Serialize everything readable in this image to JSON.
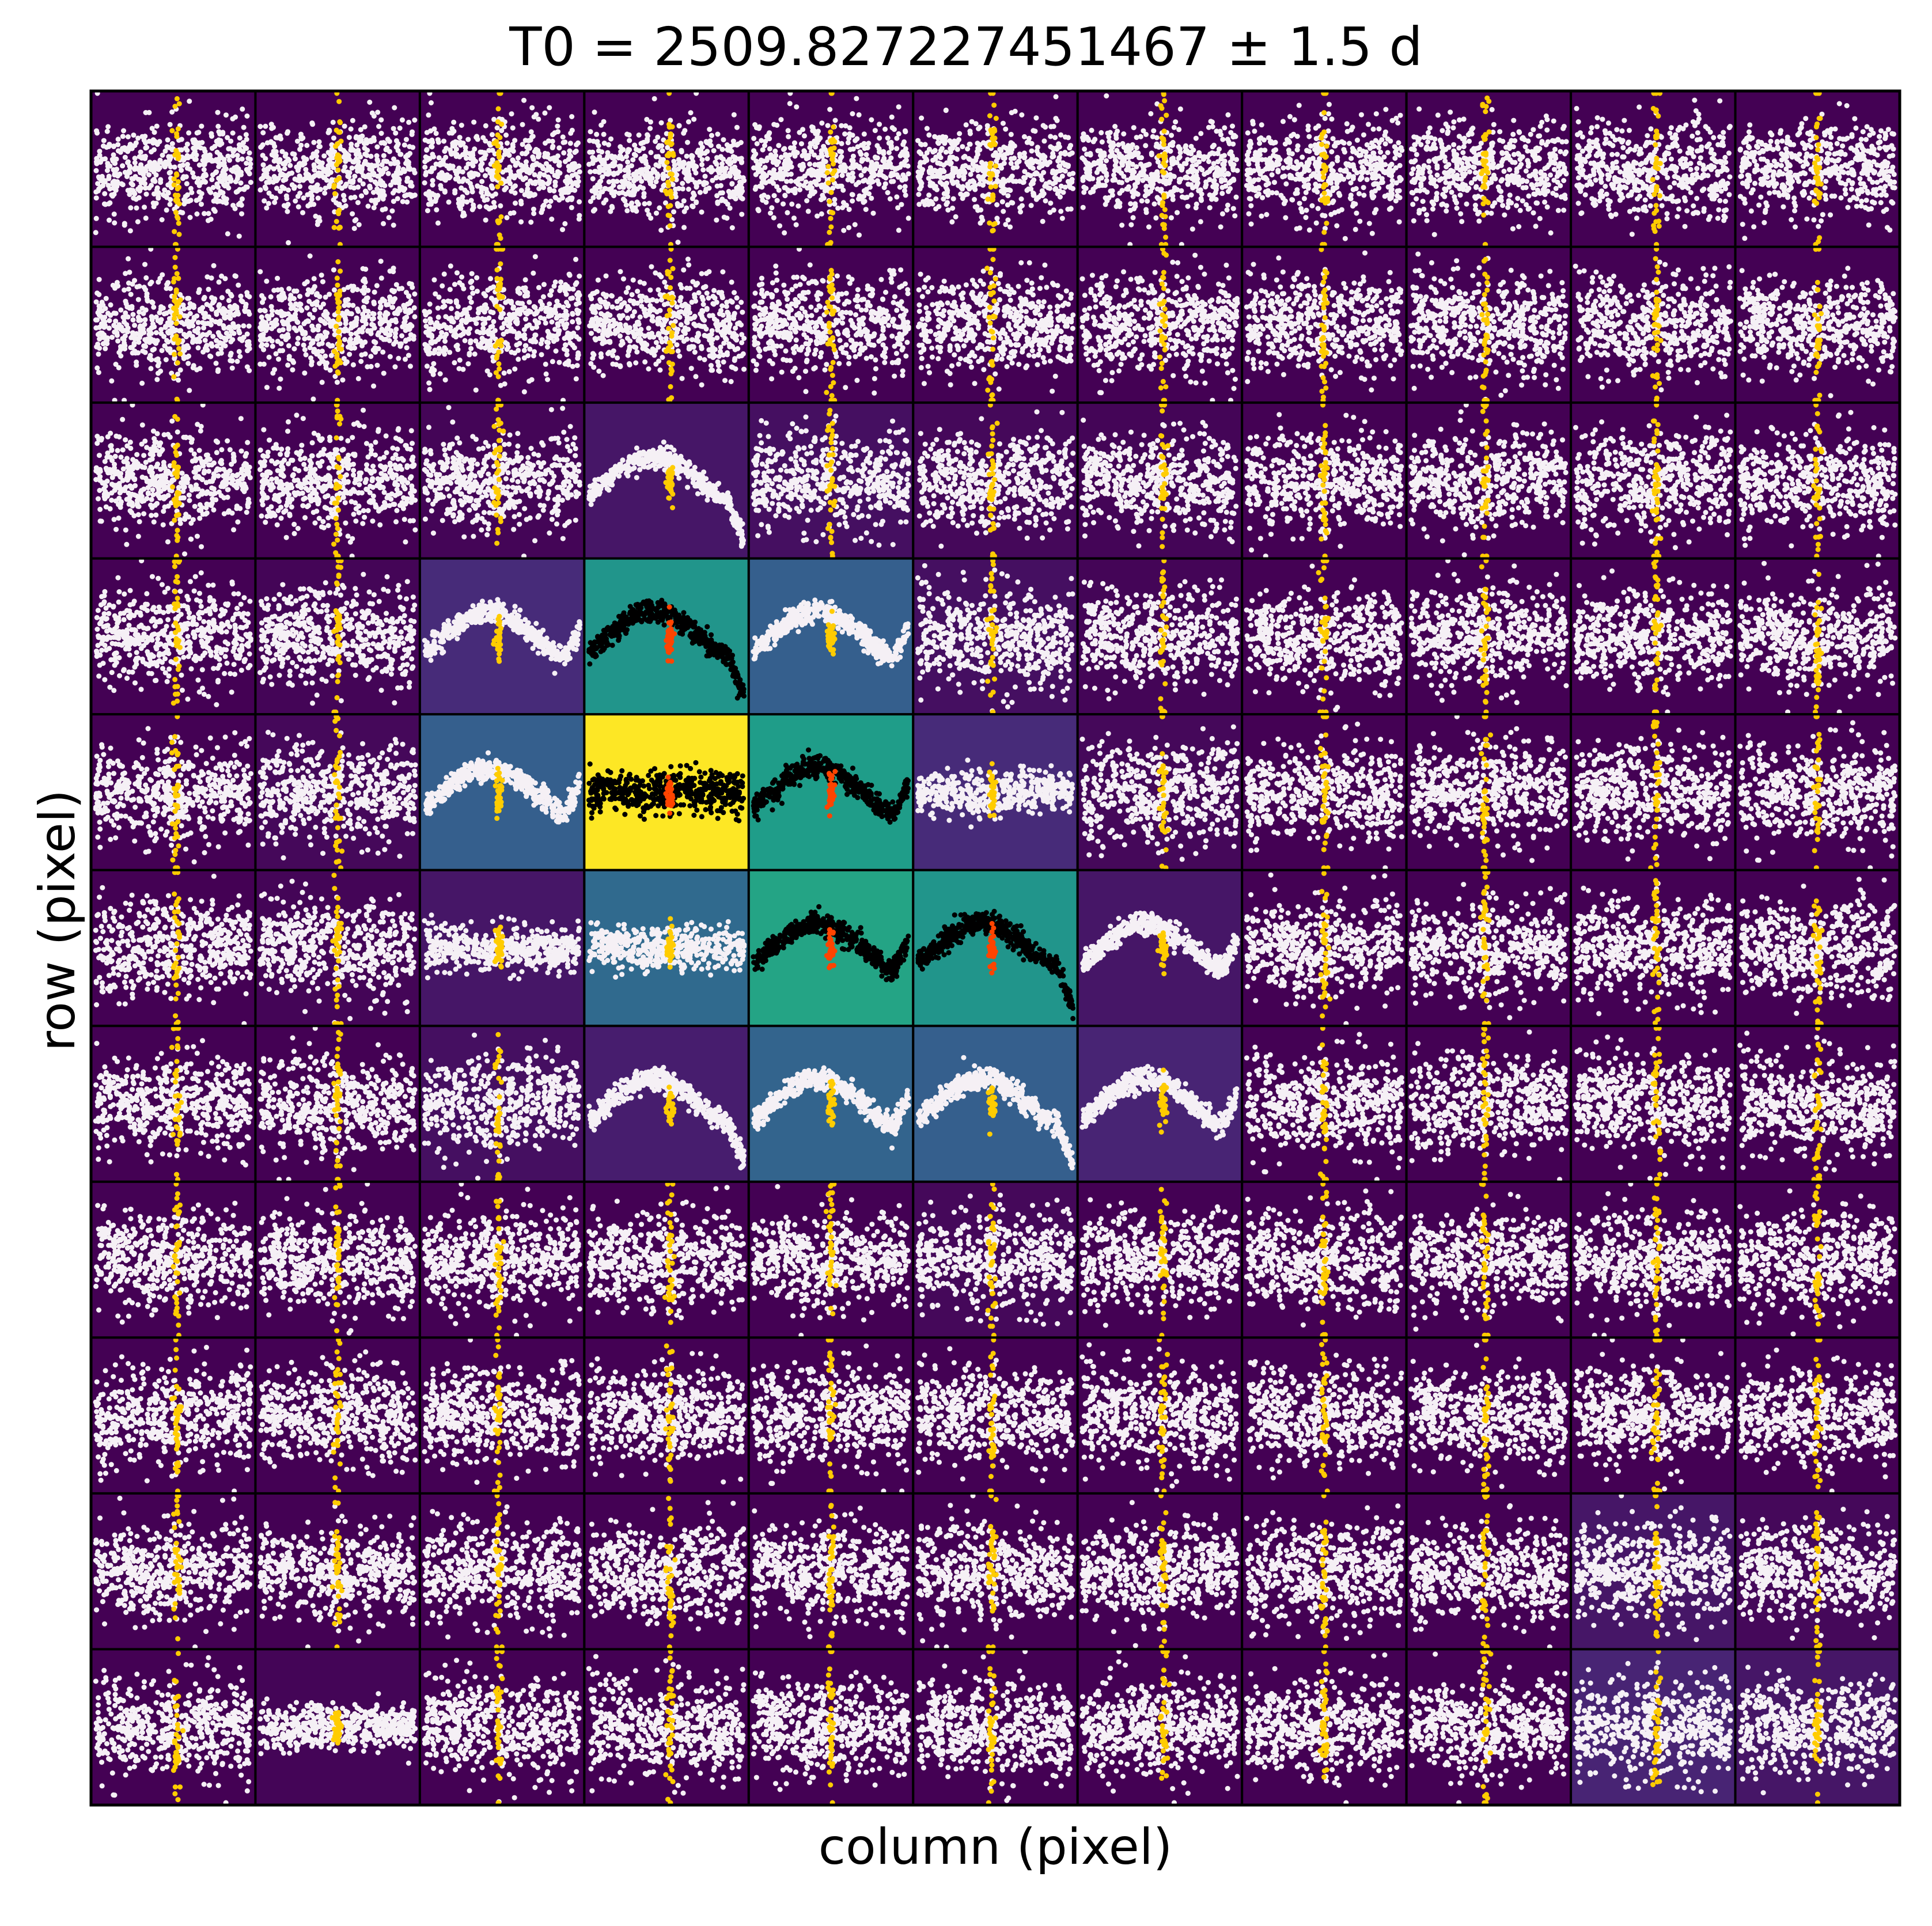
{
  "chart_data": {
    "type": "scatter",
    "title": "T0 = 2509.827227451467 ± 1.5 d",
    "xlabel": "column (pixel)",
    "ylabel": "row (pixel)",
    "grid_rows": 11,
    "grid_cols": 11,
    "colormap": "viridis",
    "colors": {
      "background_low": "#440154",
      "background_high": "#fde725",
      "point_light": "#f5f0f5",
      "point_dark": "#000000",
      "transit_light": "#ffcc00",
      "transit_dark": "#ff4400"
    },
    "pixel_flux": [
      [
        0.0,
        0.0,
        0.0,
        0.0,
        0.0,
        0.0,
        0.0,
        0.0,
        0.0,
        0.0,
        0.0
      ],
      [
        0.0,
        0.0,
        0.0,
        0.0,
        0.0,
        0.0,
        0.0,
        0.0,
        0.0,
        0.0,
        0.0
      ],
      [
        0.0,
        0.0,
        0.01,
        0.06,
        0.04,
        0.02,
        0.01,
        0.0,
        0.0,
        0.0,
        0.0
      ],
      [
        0.0,
        0.01,
        0.12,
        0.52,
        0.3,
        0.04,
        0.01,
        0.0,
        0.0,
        0.0,
        0.0
      ],
      [
        0.0,
        0.02,
        0.3,
        1.0,
        0.55,
        0.12,
        0.02,
        0.0,
        0.0,
        0.0,
        0.0
      ],
      [
        0.0,
        0.01,
        0.06,
        0.34,
        0.58,
        0.52,
        0.06,
        0.0,
        0.0,
        0.0,
        0.0
      ],
      [
        0.0,
        0.0,
        0.04,
        0.08,
        0.32,
        0.3,
        0.1,
        0.0,
        0.0,
        0.0,
        0.0
      ],
      [
        0.0,
        0.0,
        0.0,
        0.0,
        0.0,
        0.02,
        0.0,
        0.0,
        0.0,
        0.0,
        0.0
      ],
      [
        0.0,
        0.0,
        0.0,
        0.0,
        0.0,
        0.0,
        0.0,
        0.0,
        0.0,
        0.0,
        0.0
      ],
      [
        0.0,
        0.0,
        0.0,
        0.0,
        0.0,
        0.0,
        0.0,
        0.0,
        0.0,
        0.06,
        0.02
      ],
      [
        0.0,
        0.01,
        0.0,
        0.0,
        0.0,
        0.0,
        0.0,
        0.0,
        0.0,
        0.1,
        0.06
      ]
    ],
    "aperture": [
      [
        3,
        3
      ],
      [
        4,
        3
      ],
      [
        4,
        4
      ],
      [
        5,
        4
      ],
      [
        5,
        5
      ]
    ],
    "lightcurve_shapes": {
      "2,3": "wave",
      "3,2": "wave",
      "3,3": "wave",
      "3,4": "wave",
      "4,2": "wave",
      "4,3": "flat",
      "4,4": "wave",
      "4,5": "flat",
      "5,2": "flat",
      "5,3": "flat",
      "5,4": "wave",
      "5,5": "wave",
      "5,6": "wave",
      "6,3": "wave",
      "6,4": "wave",
      "6,5": "wave",
      "6,6": "wave",
      "10,1": "flat"
    }
  }
}
